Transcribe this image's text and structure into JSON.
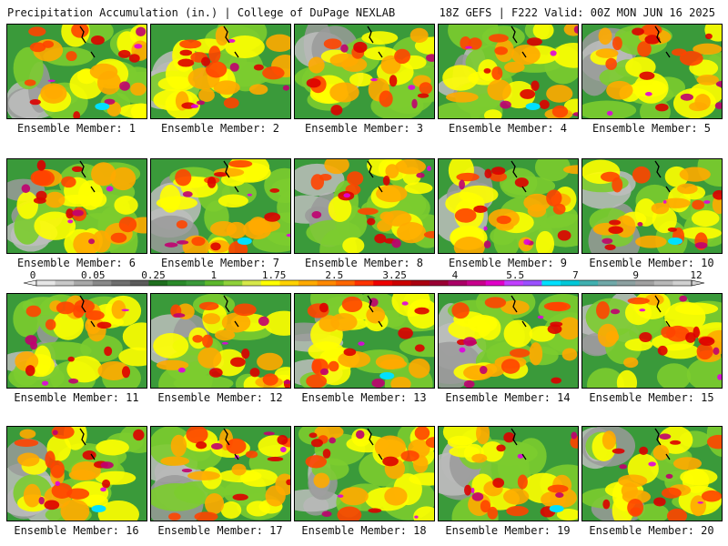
{
  "header": {
    "left_title": "Precipitation Accumulation (in.) | College of DuPage NEXLAB",
    "right_title": "18Z GEFS | F222 Valid: 00Z MON JUN 16 2025"
  },
  "members": [
    {
      "label": "Ensemble Member: 1"
    },
    {
      "label": "Ensemble Member: 2"
    },
    {
      "label": "Ensemble Member: 3"
    },
    {
      "label": "Ensemble Member: 4"
    },
    {
      "label": "Ensemble Member: 5"
    },
    {
      "label": "Ensemble Member: 6"
    },
    {
      "label": "Ensemble Member: 7"
    },
    {
      "label": "Ensemble Member: 8"
    },
    {
      "label": "Ensemble Member: 9"
    },
    {
      "label": "Ensemble Member: 10"
    },
    {
      "label": "Ensemble Member: 11"
    },
    {
      "label": "Ensemble Member: 12"
    },
    {
      "label": "Ensemble Member: 13"
    },
    {
      "label": "Ensemble Member: 14"
    },
    {
      "label": "Ensemble Member: 15"
    },
    {
      "label": "Ensemble Member: 16"
    },
    {
      "label": "Ensemble Member: 17"
    },
    {
      "label": "Ensemble Member: 18"
    },
    {
      "label": "Ensemble Member: 19"
    },
    {
      "label": "Ensemble Member: 20"
    }
  ],
  "colorbar": {
    "tick_labels": [
      "0",
      "0.05",
      "0.25",
      "1",
      "1.75",
      "2.5",
      "3.25",
      "4",
      "5.5",
      "7",
      "9",
      "12"
    ],
    "colors": [
      "#e6e6e6",
      "#c8c8c8",
      "#a8a8a8",
      "#888888",
      "#6e6e6e",
      "#5a5a5a",
      "#1e6e1e",
      "#2a8a2a",
      "#3a9a3a",
      "#5cb82c",
      "#8fd13a",
      "#d6e84a",
      "#ffff00",
      "#ffd200",
      "#ffaa00",
      "#ff8800",
      "#ff6600",
      "#ff3300",
      "#ee0000",
      "#cc0000",
      "#aa0010",
      "#990033",
      "#aa0066",
      "#c8008c",
      "#e000c8",
      "#c040ff",
      "#9a50ff",
      "#00e0ff",
      "#00c8d8",
      "#40b0b0",
      "#6fa8a8",
      "#8ca0a0",
      "#a0a0a0",
      "#b8b8b8",
      "#d0d0d0"
    ]
  },
  "map_palette": [
    "#aaaaaa",
    "#3a9a3a",
    "#228b22",
    "#7ccc2f",
    "#ffff00",
    "#ffaa00",
    "#ff4400",
    "#dd0000",
    "#c00070",
    "#e000e0",
    "#00e0ff"
  ]
}
